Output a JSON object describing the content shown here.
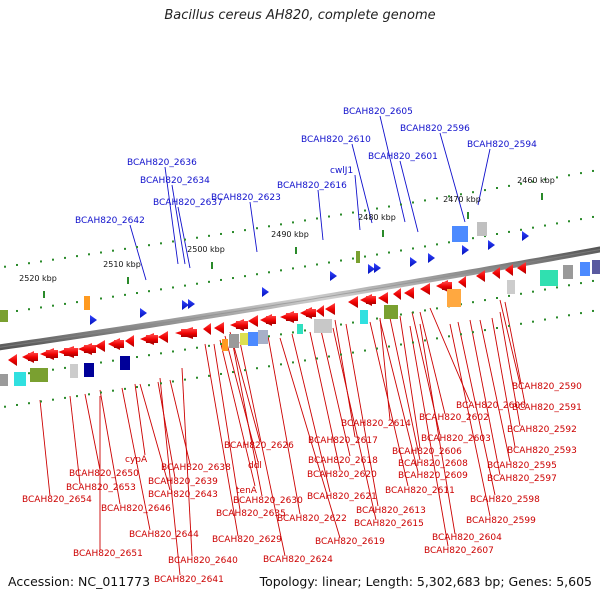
{
  "title": "Bacillus cereus AH820, complete genome",
  "footer": {
    "accession": "Accession: NC_011773",
    "summary": "Topology: linear; Length: 5,302,683 bp; Genes: 5,605"
  },
  "colors": {
    "top_label": "#1010cc",
    "bottom_label": "#cc0000",
    "backbone": "#777777",
    "tick": "#2a8a2a"
  },
  "scale_labels": [
    "2460 kbp",
    "2470 kbp",
    "2480 kbp",
    "2490 kbp",
    "2500 kbp",
    "2510 kbp",
    "2520 kbp"
  ],
  "top_labels": [
    "BCAH820_2605",
    "BCAH820_2610",
    "BCAH820_2596",
    "BCAH820_2601",
    "BCAH820_2594",
    "BCAH820_2636",
    "cwlJ1",
    "BCAH820_2634",
    "BCAH820_2616",
    "BCAH820_2637",
    "BCAH820_2623",
    "BCAH820_2642"
  ],
  "bottom_labels": [
    "BCAH820_2590",
    "BCAH820_2600",
    "BCAH820_2591",
    "BCAH820_2602",
    "BCAH820_2614",
    "BCAH820_2592",
    "BCAH820_2617",
    "BCAH820_2603",
    "BCAH820_2626",
    "BCAH820_2606",
    "BCAH820_2593",
    "cypA",
    "BCAH820_2618",
    "BCAH820_2608",
    "BCAH820_2595",
    "BCAH820_2650",
    "BCAH820_2638",
    "ddl",
    "BCAH820_2620",
    "BCAH820_2609",
    "BCAH820_2597",
    "BCAH820_2653",
    "BCAH820_2639",
    "tenA",
    "BCAH820_2611",
    "BCAH820_2643",
    "BCAH820_2654",
    "BCAH820_2630",
    "BCAH820_2621",
    "BCAH820_2598",
    "BCAH820_2646",
    "BCAH820_2613",
    "BCAH820_2635",
    "BCAH820_2622",
    "BCAH820_2615",
    "BCAH820_2599",
    "BCAH820_2644",
    "BCAH820_2604",
    "BCAH820_2629",
    "BCAH820_2619",
    "BCAH820_2607",
    "BCAH820_2651",
    "BCAH820_2640",
    "BCAH820_2624",
    "BCAH820_2641"
  ]
}
